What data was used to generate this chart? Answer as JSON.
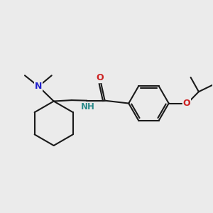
{
  "background_color": "#ebebeb",
  "bond_color": "#1a1a1a",
  "N_color": "#2020cc",
  "O_color": "#cc2020",
  "NH_color": "#2a8a8a",
  "line_width": 1.5,
  "figsize": [
    3.0,
    3.0
  ],
  "dpi": 100,
  "xlim": [
    0,
    10
  ],
  "ylim": [
    0,
    10
  ]
}
